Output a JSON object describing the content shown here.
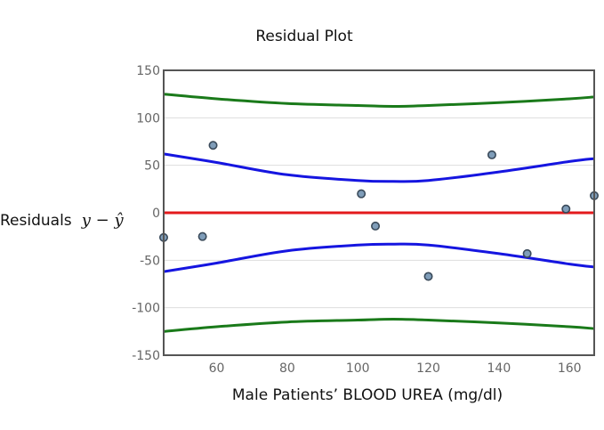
{
  "chart_data": {
    "type": "scatter",
    "title": "Residual Plot",
    "xlabel": "Male Patients’ BLOOD UREA (mg/dl)",
    "ylabel": "Residuals",
    "ylabel_math": "y − ŷ",
    "xlim": [
      45,
      167
    ],
    "ylim": [
      -150,
      150
    ],
    "xticks": [
      60,
      80,
      100,
      120,
      140,
      160
    ],
    "yticks": [
      150,
      100,
      50,
      0,
      -50,
      -100,
      -150
    ],
    "grid": true,
    "legend": "none",
    "colors": {
      "points": "#7f9db9",
      "point_stroke": "#3a4a5a",
      "zero_line": "#e31a1c",
      "inner_band": "#1515e0",
      "outer_band": "#1a7a1a",
      "axis": "#555555",
      "grid": "#dddddd"
    },
    "points": [
      {
        "x": 45,
        "y": -26
      },
      {
        "x": 56,
        "y": -25
      },
      {
        "x": 59,
        "y": 71
      },
      {
        "x": 101,
        "y": 20
      },
      {
        "x": 105,
        "y": -14
      },
      {
        "x": 120,
        "y": -67
      },
      {
        "x": 138,
        "y": 61
      },
      {
        "x": 148,
        "y": -43
      },
      {
        "x": 159,
        "y": 4
      },
      {
        "x": 167,
        "y": 18
      }
    ],
    "zero_line": 0,
    "bands": [
      {
        "role": "inner_upper",
        "x": [
          45,
          60,
          80,
          100,
          110,
          120,
          140,
          160,
          167
        ],
        "y": [
          62,
          53,
          40,
          34,
          33,
          34,
          43,
          54,
          57
        ]
      },
      {
        "role": "inner_lower",
        "x": [
          45,
          60,
          80,
          100,
          110,
          120,
          140,
          160,
          167
        ],
        "y": [
          -62,
          -53,
          -40,
          -34,
          -33,
          -34,
          -43,
          -54,
          -57
        ]
      },
      {
        "role": "outer_upper",
        "x": [
          45,
          60,
          80,
          100,
          110,
          120,
          140,
          160,
          167
        ],
        "y": [
          125,
          120,
          115,
          113,
          112,
          113,
          116,
          120,
          122
        ]
      },
      {
        "role": "outer_lower",
        "x": [
          45,
          60,
          80,
          100,
          110,
          120,
          140,
          160,
          167
        ],
        "y": [
          -125,
          -120,
          -115,
          -113,
          -112,
          -113,
          -116,
          -120,
          -122
        ]
      }
    ]
  }
}
